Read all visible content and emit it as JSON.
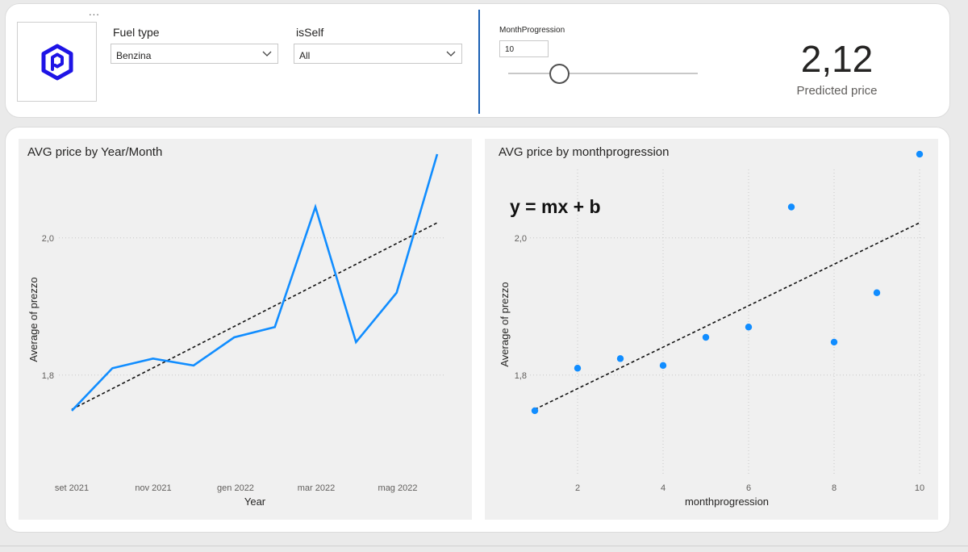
{
  "header": {
    "menu_dots": "...",
    "fuel_type": {
      "label": "Fuel type",
      "value": "Benzina"
    },
    "is_self": {
      "label": "isSelf",
      "value": "All"
    },
    "month_progression": {
      "label": "MonthProgression",
      "value": "10",
      "slider_fraction": 0.27
    },
    "kpi": {
      "value": "2,12",
      "label": "Predicted price"
    }
  },
  "colors": {
    "accent": "#118dff",
    "divider": "#1a5fb4",
    "logo": "#1e14e6"
  },
  "icons": {
    "logo": "hexagon-logo-icon",
    "dropdown": "chevron-down-icon"
  },
  "chart_data": [
    {
      "type": "line",
      "title": "AVG price by Year/Month",
      "xlabel": "Year",
      "ylabel": "Average of prezzo",
      "x_ticks": [
        "set 2021",
        "nov 2021",
        "gen 2022",
        "mar 2022",
        "mag 2022"
      ],
      "y_ticks": [
        {
          "value": 1.8,
          "label": "1,8"
        },
        {
          "value": 2.0,
          "label": "2,0"
        }
      ],
      "ylim": [
        1.695,
        2.21
      ],
      "series": [
        {
          "values": [
            1.748,
            1.81,
            1.824,
            1.814,
            1.855,
            1.87,
            2.045,
            1.848,
            1.92,
            2.122
          ]
        }
      ],
      "trendline": {
        "start": 1.75,
        "end": 2.022,
        "style": "dashed"
      },
      "grid": "horizontal dotted"
    },
    {
      "type": "scatter",
      "title": "AVG price by monthprogression",
      "xlabel": "monthprogression",
      "ylabel": "Average of prezzo",
      "annotation": "y = mx + b",
      "x_ticks": [
        2,
        4,
        6,
        8,
        10
      ],
      "y_ticks": [
        {
          "value": 1.8,
          "label": "1,8"
        },
        {
          "value": 2.0,
          "label": "2,0"
        }
      ],
      "xlim": [
        1,
        10
      ],
      "ylim": [
        1.695,
        2.21
      ],
      "points": [
        {
          "x": 1,
          "y": 1.748
        },
        {
          "x": 2,
          "y": 1.81
        },
        {
          "x": 3,
          "y": 1.824
        },
        {
          "x": 4,
          "y": 1.814
        },
        {
          "x": 5,
          "y": 1.855
        },
        {
          "x": 6,
          "y": 1.87
        },
        {
          "x": 7,
          "y": 2.045
        },
        {
          "x": 8,
          "y": 1.848
        },
        {
          "x": 9,
          "y": 1.92
        },
        {
          "x": 10,
          "y": 2.122
        }
      ],
      "trendline": {
        "x": [
          1,
          10
        ],
        "y": [
          1.75,
          2.022
        ],
        "style": "dashed"
      },
      "grid": "both dotted"
    }
  ]
}
